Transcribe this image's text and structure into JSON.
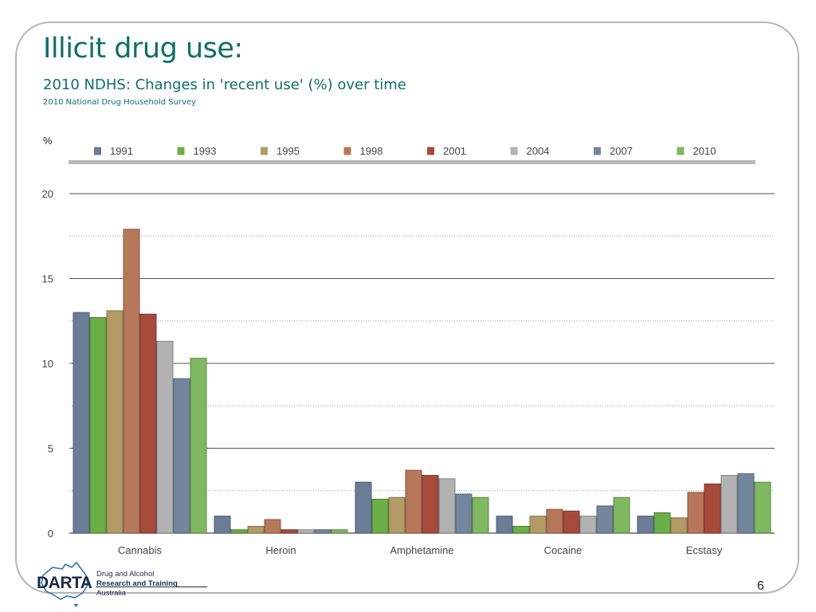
{
  "slide": {
    "title": "Illicit drug use:",
    "subtitle": "2010 NDHS: Changes in 'recent use' (%) over time",
    "subsubtitle": "2010 National Drug Household Survey",
    "page_number": "6"
  },
  "logo": {
    "name": "DARTA",
    "line1": "Drug and Alcohol",
    "line2": "Research and Training",
    "line3": "Australia"
  },
  "chart_data": {
    "type": "bar",
    "title": "",
    "xlabel": "",
    "ylabel": "%",
    "ylim": [
      0,
      20
    ],
    "yticks": [
      0,
      5,
      10,
      15,
      20
    ],
    "grid": true,
    "legend_position": "top",
    "categories": [
      "Cannabis",
      "Heroin",
      "Amphetamine",
      "Cocaine",
      "Ecstasy"
    ],
    "series": [
      {
        "name": "1991",
        "color": "#6b7d96",
        "values": [
          13.0,
          1.0,
          3.0,
          1.0,
          1.0
        ]
      },
      {
        "name": "1993",
        "color": "#6cae47",
        "values": [
          12.7,
          0.2,
          2.0,
          0.4,
          1.2
        ]
      },
      {
        "name": "1995",
        "color": "#b39b66",
        "values": [
          13.1,
          0.4,
          2.1,
          1.0,
          0.9
        ]
      },
      {
        "name": "1998",
        "color": "#b7775a",
        "values": [
          17.9,
          0.8,
          3.7,
          1.4,
          2.4
        ]
      },
      {
        "name": "2001",
        "color": "#a64b3c",
        "values": [
          12.9,
          0.2,
          3.4,
          1.3,
          2.9
        ]
      },
      {
        "name": "2004",
        "color": "#b2b2b2",
        "values": [
          11.3,
          0.2,
          3.2,
          1.0,
          3.4
        ]
      },
      {
        "name": "2007",
        "color": "#74869e",
        "values": [
          9.1,
          0.2,
          2.3,
          1.6,
          3.5
        ]
      },
      {
        "name": "2010",
        "color": "#7fb861",
        "values": [
          10.3,
          0.2,
          2.1,
          2.1,
          3.0
        ]
      }
    ]
  }
}
